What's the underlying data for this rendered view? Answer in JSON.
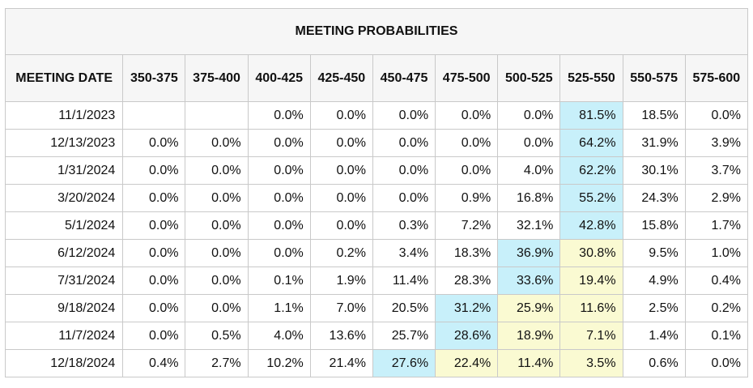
{
  "title": "MEETING PROBABILITIES",
  "columns": [
    "MEETING DATE",
    "350-375",
    "375-400",
    "400-425",
    "425-450",
    "450-475",
    "475-500",
    "500-525",
    "525-550",
    "550-575",
    "575-600"
  ],
  "colors": {
    "highlight_blue": "#c8f0fa",
    "highlight_yellow": "#fafad2",
    "border": "#c9c9c9"
  },
  "rows": [
    {
      "date": "11/1/2023",
      "values": [
        "",
        "",
        "0.0%",
        "0.0%",
        "0.0%",
        "0.0%",
        "0.0%",
        "81.5%",
        "18.5%",
        "0.0%"
      ],
      "highlights": {
        "7": "blue"
      }
    },
    {
      "date": "12/13/2023",
      "values": [
        "0.0%",
        "0.0%",
        "0.0%",
        "0.0%",
        "0.0%",
        "0.0%",
        "0.0%",
        "64.2%",
        "31.9%",
        "3.9%"
      ],
      "highlights": {
        "7": "blue"
      }
    },
    {
      "date": "1/31/2024",
      "values": [
        "0.0%",
        "0.0%",
        "0.0%",
        "0.0%",
        "0.0%",
        "0.0%",
        "4.0%",
        "62.2%",
        "30.1%",
        "3.7%"
      ],
      "highlights": {
        "7": "blue"
      }
    },
    {
      "date": "3/20/2024",
      "values": [
        "0.0%",
        "0.0%",
        "0.0%",
        "0.0%",
        "0.0%",
        "0.9%",
        "16.8%",
        "55.2%",
        "24.3%",
        "2.9%"
      ],
      "highlights": {
        "7": "blue"
      }
    },
    {
      "date": "5/1/2024",
      "values": [
        "0.0%",
        "0.0%",
        "0.0%",
        "0.0%",
        "0.3%",
        "7.2%",
        "32.1%",
        "42.8%",
        "15.8%",
        "1.7%"
      ],
      "highlights": {
        "7": "blue"
      }
    },
    {
      "date": "6/12/2024",
      "values": [
        "0.0%",
        "0.0%",
        "0.0%",
        "0.2%",
        "3.4%",
        "18.3%",
        "36.9%",
        "30.8%",
        "9.5%",
        "1.0%"
      ],
      "highlights": {
        "6": "blue",
        "7": "yellow"
      }
    },
    {
      "date": "7/31/2024",
      "values": [
        "0.0%",
        "0.0%",
        "0.1%",
        "1.9%",
        "11.4%",
        "28.3%",
        "33.6%",
        "19.4%",
        "4.9%",
        "0.4%"
      ],
      "highlights": {
        "6": "blue",
        "7": "yellow"
      }
    },
    {
      "date": "9/18/2024",
      "values": [
        "0.0%",
        "0.0%",
        "1.1%",
        "7.0%",
        "20.5%",
        "31.2%",
        "25.9%",
        "11.6%",
        "2.5%",
        "0.2%"
      ],
      "highlights": {
        "5": "blue",
        "6": "yellow",
        "7": "yellow"
      }
    },
    {
      "date": "11/7/2024",
      "values": [
        "0.0%",
        "0.5%",
        "4.0%",
        "13.6%",
        "25.7%",
        "28.6%",
        "18.9%",
        "7.1%",
        "1.4%",
        "0.1%"
      ],
      "highlights": {
        "5": "blue",
        "6": "yellow",
        "7": "yellow"
      }
    },
    {
      "date": "12/18/2024",
      "values": [
        "0.4%",
        "2.7%",
        "10.2%",
        "21.4%",
        "27.6%",
        "22.4%",
        "11.4%",
        "3.5%",
        "0.6%",
        "0.0%"
      ],
      "highlights": {
        "4": "blue",
        "5": "yellow",
        "6": "yellow",
        "7": "yellow"
      }
    }
  ]
}
